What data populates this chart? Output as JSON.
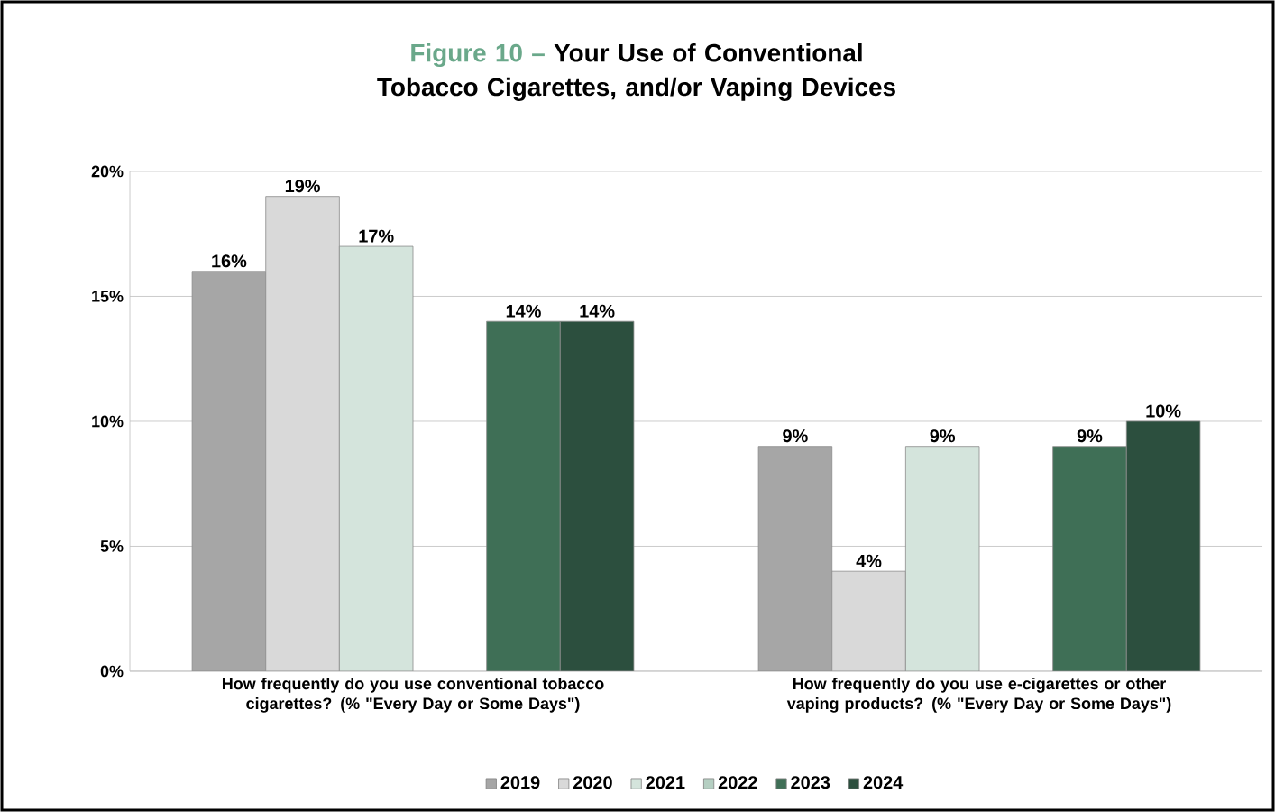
{
  "chart_data": {
    "type": "bar",
    "title": "Your Use of Conventional Tobacco Cigarettes, and/or Vaping Devices",
    "annotations": [
      "Figure 10 –"
    ],
    "categories": [
      "How frequently do you use conventional tobacco cigarettes? (% \"Every Day or Some Days\")",
      "How frequently do you use e-cigarettes or other vaping products? (% \"Every Day or Some Days\")"
    ],
    "series": [
      {
        "name": "2019",
        "color": "#a6a6a6",
        "values": [
          16,
          9
        ],
        "value_labels": [
          "16%",
          "9%"
        ]
      },
      {
        "name": "2020",
        "color": "#d9d9d9",
        "values": [
          19,
          4
        ],
        "value_labels": [
          "19%",
          "4%"
        ]
      },
      {
        "name": "2021",
        "color": "#d4e4dc",
        "values": [
          17,
          9
        ],
        "value_labels": [
          "17%",
          "9%"
        ]
      },
      {
        "name": "2022",
        "color": "#b5cfc2",
        "values": [
          null,
          null
        ],
        "value_labels": [
          null,
          null
        ]
      },
      {
        "name": "2023",
        "color": "#3f6f56",
        "values": [
          14,
          9
        ],
        "value_labels": [
          "14%",
          "9%"
        ]
      },
      {
        "name": "2024",
        "color": "#2c4f3e",
        "values": [
          14,
          10
        ],
        "value_labels": [
          "14%",
          "10%"
        ]
      }
    ],
    "ylim": [
      0,
      20
    ],
    "yticks": [
      {
        "value": 0,
        "label": "0%"
      },
      {
        "value": 5,
        "label": "5%"
      },
      {
        "value": 10,
        "label": "10%"
      },
      {
        "value": 15,
        "label": "15%"
      },
      {
        "value": 20,
        "label": "20%"
      }
    ],
    "grid": "y",
    "legend": "bottom"
  }
}
